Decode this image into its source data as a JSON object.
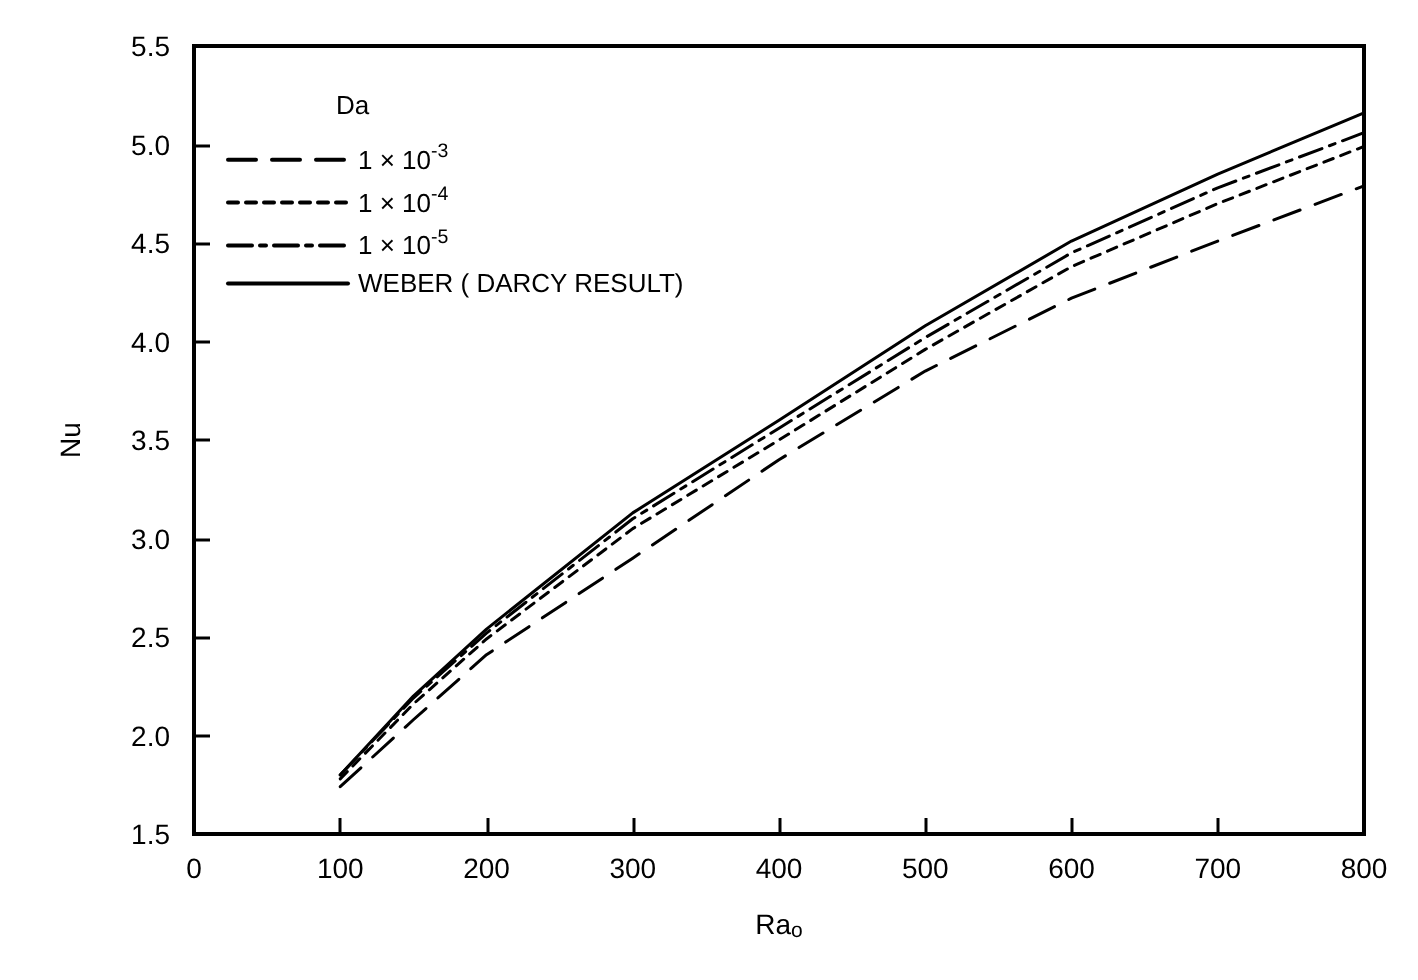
{
  "chart_data": {
    "type": "line",
    "xlabel": "Ra$_{o}$",
    "ylabel": "Nu",
    "legend_title": "Da",
    "x": [
      100,
      150,
      200,
      300,
      400,
      500,
      600,
      700,
      800
    ],
    "series": [
      {
        "name": "1 × 10$^{-3}$",
        "color": "#000000",
        "line_style": "dashed",
        "values": [
          1.74,
          2.08,
          2.41,
          2.9,
          3.4,
          3.85,
          4.22,
          4.51,
          4.79
        ]
      },
      {
        "name": "1 × 10$^{-4}$",
        "color": "#000000",
        "line_style": "dotted",
        "values": [
          1.78,
          2.16,
          2.49,
          3.05,
          3.5,
          3.96,
          4.38,
          4.7,
          4.99
        ]
      },
      {
        "name": "1 × 10$^{-5}$",
        "color": "#000000",
        "line_style": "dashdot",
        "values": [
          1.8,
          2.19,
          2.52,
          3.1,
          3.56,
          4.02,
          4.45,
          4.78,
          5.06
        ]
      },
      {
        "name": "WEBER ( DARCY RESULT)",
        "color": "#000000",
        "line_style": "solid",
        "values": [
          1.8,
          2.2,
          2.54,
          3.13,
          3.6,
          4.08,
          4.51,
          4.85,
          5.16
        ]
      }
    ],
    "xlim": [
      0,
      800
    ],
    "xticks": [
      0,
      100,
      200,
      300,
      400,
      500,
      600,
      700,
      800
    ],
    "ylim": [
      1.5,
      5.5
    ],
    "yticks": [
      1.5,
      {
        "value": 2,
        "label": "2.0"
      },
      2.5,
      {
        "value": 3,
        "label": "3.0"
      },
      3.5,
      {
        "value": 4,
        "label": "4.0"
      },
      4.5,
      {
        "value": 5,
        "label": "5.0"
      },
      5.5
    ],
    "grid": false,
    "legend": "top left",
    "marker": "none"
  }
}
